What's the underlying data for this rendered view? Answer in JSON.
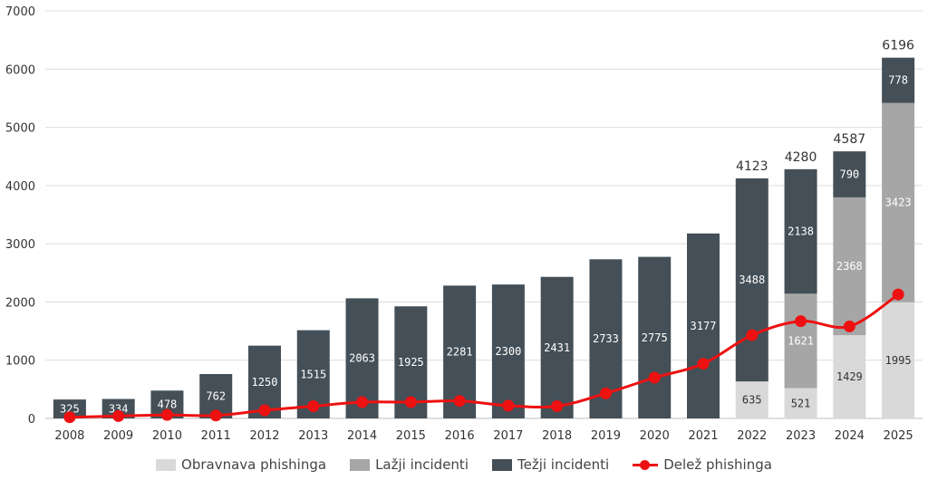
{
  "chart_data": {
    "type": "bar",
    "stacked": true,
    "categories": [
      "2008",
      "2009",
      "2010",
      "2011",
      "2012",
      "2013",
      "2014",
      "2015",
      "2016",
      "2017",
      "2018",
      "2019",
      "2020",
      "2021",
      "2022",
      "2023",
      "2024",
      "2025"
    ],
    "ylim": [
      0,
      7000
    ],
    "yticks": [
      0,
      1000,
      2000,
      3000,
      4000,
      5000,
      6000,
      7000
    ],
    "grid": true,
    "legend_position": "bottom",
    "series": [
      {
        "name": "Obravnava phishinga",
        "color": "#d9d9d9",
        "label_color": "#333333",
        "values": [
          null,
          null,
          null,
          null,
          null,
          null,
          null,
          null,
          null,
          null,
          null,
          null,
          null,
          null,
          635,
          521,
          1429,
          1995
        ]
      },
      {
        "name": "Lažji incidenti",
        "color": "#a6a6a6",
        "label_color": "#ffffff",
        "values": [
          null,
          null,
          null,
          null,
          null,
          null,
          null,
          null,
          null,
          null,
          null,
          null,
          null,
          null,
          null,
          1621,
          2368,
          3423
        ]
      },
      {
        "name": "Težji incidenti",
        "color": "#444f57",
        "label_color": "#ffffff",
        "values": [
          325,
          334,
          478,
          762,
          1250,
          1515,
          2063,
          1925,
          2281,
          2300,
          2431,
          2733,
          2775,
          3177,
          3488,
          2138,
          790,
          778
        ]
      }
    ],
    "totals": [
      null,
      null,
      null,
      null,
      null,
      null,
      null,
      null,
      null,
      null,
      null,
      null,
      null,
      null,
      4123,
      4280,
      4587,
      6196
    ],
    "line_series": {
      "name": "Delež phishinga",
      "color": "#ee1111",
      "values": [
        20,
        40,
        60,
        50,
        140,
        210,
        280,
        280,
        300,
        220,
        210,
        430,
        700,
        940,
        1430,
        1670,
        1580,
        2130
      ]
    }
  }
}
